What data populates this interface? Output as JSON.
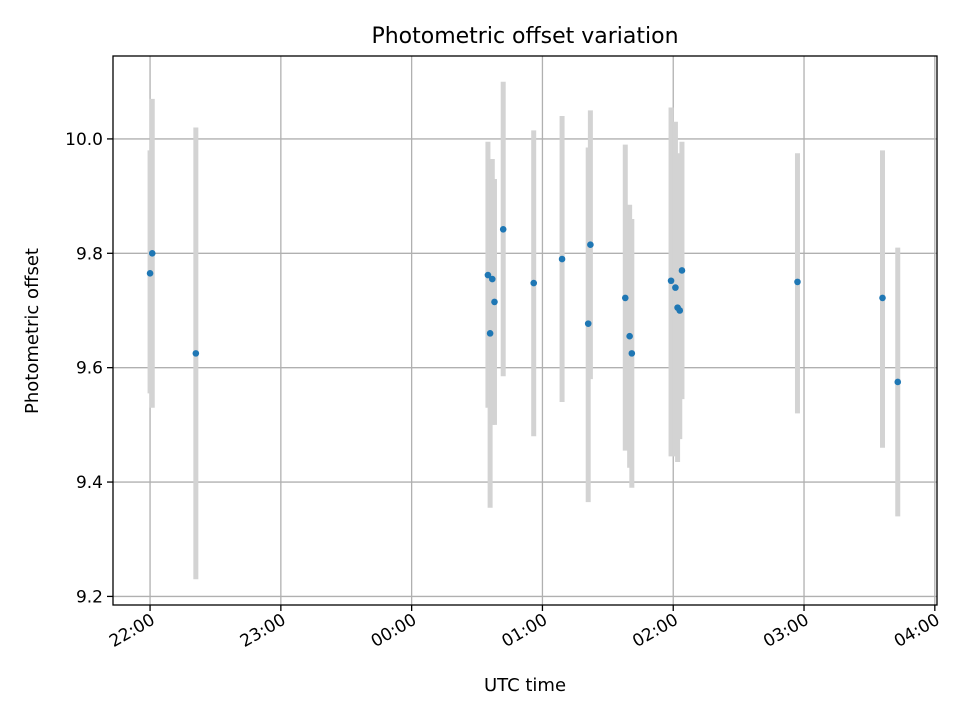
{
  "chart_data": {
    "type": "scatter",
    "title": "Photometric offset variation",
    "xlabel": "UTC time",
    "ylabel": "Photometric offset",
    "x_axis_type": "time",
    "xlim": [
      "21:43",
      "04:01"
    ],
    "ylim": [
      9.185,
      10.145
    ],
    "x_ticks": [
      "22:00",
      "23:00",
      "00:00",
      "01:00",
      "02:00",
      "03:00",
      "04:00"
    ],
    "y_ticks": [
      "9.2",
      "9.4",
      "9.6",
      "9.8",
      "10.0"
    ],
    "grid": true,
    "legend": "none",
    "marker_color": "#1f77b4",
    "errorbar_color": "#d3d3d3",
    "points": [
      {
        "time": "22:00",
        "value": 9.765,
        "low": 9.555,
        "high": 9.98
      },
      {
        "time": "22:01",
        "value": 9.8,
        "low": 9.53,
        "high": 10.07
      },
      {
        "time": "22:21",
        "value": 9.625,
        "low": 9.23,
        "high": 10.02
      },
      {
        "time": "00:35",
        "value": 9.762,
        "low": 9.53,
        "high": 9.995
      },
      {
        "time": "00:36",
        "value": 9.66,
        "low": 9.355,
        "high": 9.965
      },
      {
        "time": "00:37",
        "value": 9.755,
        "low": 9.5,
        "high": 9.965
      },
      {
        "time": "00:38",
        "value": 9.715,
        "low": 9.5,
        "high": 9.93
      },
      {
        "time": "00:42",
        "value": 9.842,
        "low": 9.585,
        "high": 10.1
      },
      {
        "time": "00:56",
        "value": 9.748,
        "low": 9.48,
        "high": 10.015
      },
      {
        "time": "01:09",
        "value": 9.79,
        "low": 9.54,
        "high": 10.04
      },
      {
        "time": "01:21",
        "value": 9.677,
        "low": 9.365,
        "high": 9.985
      },
      {
        "time": "01:22",
        "value": 9.815,
        "low": 9.58,
        "high": 10.05
      },
      {
        "time": "01:38",
        "value": 9.722,
        "low": 9.455,
        "high": 9.99
      },
      {
        "time": "01:40",
        "value": 9.655,
        "low": 9.425,
        "high": 9.885
      },
      {
        "time": "01:41",
        "value": 9.625,
        "low": 9.39,
        "high": 9.86
      },
      {
        "time": "01:59",
        "value": 9.752,
        "low": 9.445,
        "high": 10.055
      },
      {
        "time": "02:01",
        "value": 9.74,
        "low": 9.445,
        "high": 10.03
      },
      {
        "time": "02:02",
        "value": 9.705,
        "low": 9.435,
        "high": 9.975
      },
      {
        "time": "02:03",
        "value": 9.7,
        "low": 9.475,
        "high": 9.925
      },
      {
        "time": "02:04",
        "value": 9.77,
        "low": 9.545,
        "high": 9.995
      },
      {
        "time": "02:57",
        "value": 9.75,
        "low": 9.52,
        "high": 9.975
      },
      {
        "time": "03:36",
        "value": 9.722,
        "low": 9.46,
        "high": 9.98
      },
      {
        "time": "03:43",
        "value": 9.575,
        "low": 9.34,
        "high": 9.81
      }
    ]
  }
}
